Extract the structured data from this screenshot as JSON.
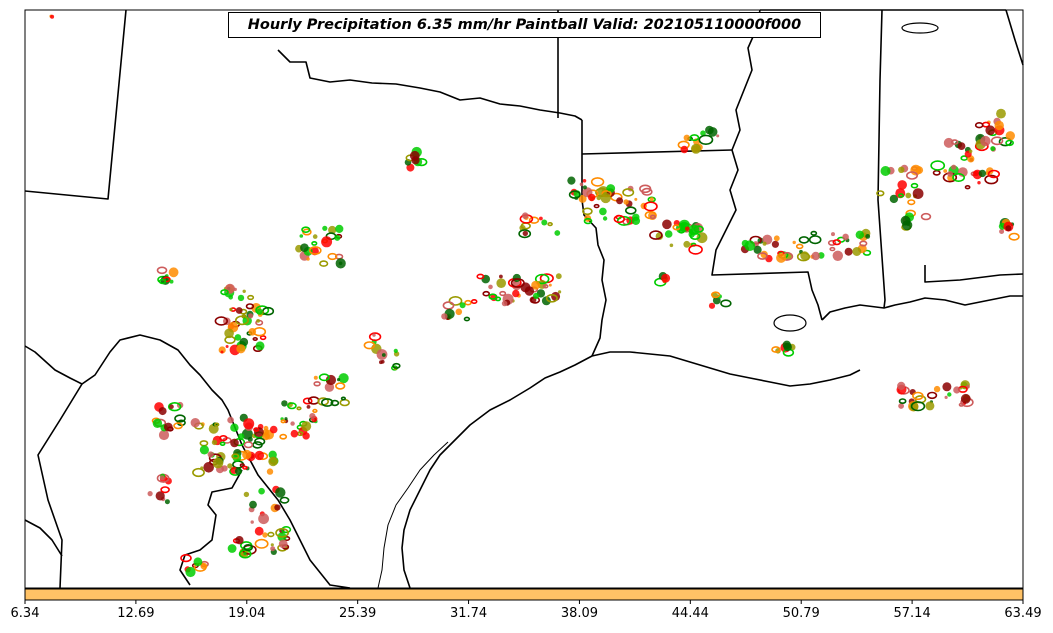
{
  "title": "Hourly Precipitation 6.35 mm/hr Paintball Valid: 202105110000f000",
  "colorbar": {
    "ticks": [
      "6.34",
      "12.69",
      "19.04",
      "25.39",
      "31.74",
      "38.09",
      "44.44",
      "50.79",
      "57.14",
      "63.49"
    ],
    "fill_color": "#ffc266",
    "min": 6.34,
    "max": 63.49
  },
  "map": {
    "background": "#ffffff",
    "boundary_color": "#000000",
    "region": "Texas / Louisiana / Gulf coast"
  },
  "paintball_colors": [
    "#ff8c00",
    "#ff0000",
    "#8b0000",
    "#00cc00",
    "#006400",
    "#9a9a00",
    "#cd5c5c"
  ]
}
